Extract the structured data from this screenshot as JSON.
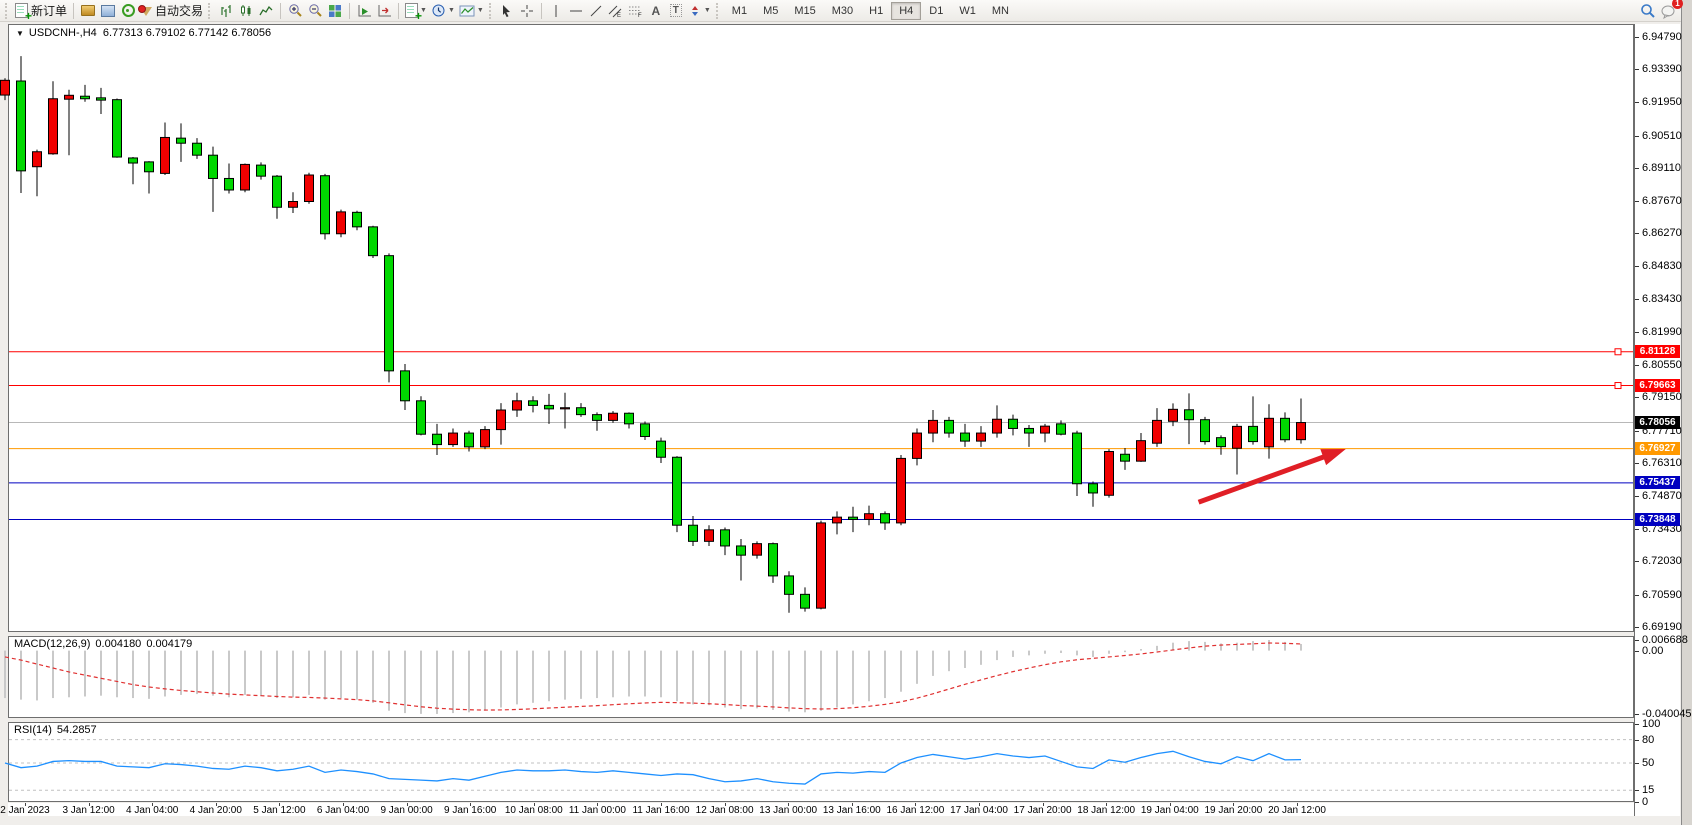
{
  "toolbar": {
    "new_order_label": "新订单",
    "autotrade_label": "自动交易",
    "timeframes": [
      "M1",
      "M5",
      "M15",
      "M30",
      "H1",
      "H4",
      "D1",
      "W1",
      "MN"
    ],
    "active_timeframe": "H4",
    "notification_badge": "1",
    "icon_names": [
      "new-order",
      "profiles",
      "market-watch",
      "signals",
      "autotrade",
      "bar-chart",
      "candlestick-chart",
      "line-chart",
      "zoom-in",
      "zoom-out",
      "tile-windows",
      "auto-scroll",
      "chart-shift",
      "new-chart",
      "periods-clock",
      "indicators",
      "cursor",
      "crosshair",
      "vertical-line",
      "horizontal-line",
      "trendline",
      "equidistant-channel",
      "fibonacci",
      "text",
      "text-label",
      "arrows",
      "search",
      "notifications"
    ]
  },
  "chart": {
    "symbol_title": "USDCNH-,H4",
    "ohlc_text": "6.77313 6.79102 6.77142 6.78056",
    "colors": {
      "bull": "#f00000",
      "bear": "#00d800",
      "wick": "#000000",
      "current_line": "#b8b8b8",
      "resistance": "#ff0000",
      "support": "#0000c0",
      "pivot": "#ff9900",
      "arrow": "#e01f26",
      "macd_hist": "#c9c9c9",
      "macd_signal": "#e03030",
      "rsi_line": "#1e90ff"
    },
    "price_axis_ticks": [
      "6.94790",
      "6.93390",
      "6.91950",
      "6.90510",
      "6.89110",
      "6.87670",
      "6.86270",
      "6.84830",
      "6.83430",
      "6.81990",
      "6.80550",
      "6.79150",
      "6.77710",
      "6.76310",
      "6.74870",
      "6.73430",
      "6.72030",
      "6.70590",
      "6.69190"
    ],
    "line_labels": [
      {
        "text": "6.81128",
        "price": 6.81128,
        "bg": "#ff0000",
        "line": "#ff0000",
        "marker": true
      },
      {
        "text": "6.79663",
        "price": 6.79663,
        "bg": "#ff0000",
        "line": "#ff0000",
        "marker": true
      },
      {
        "text": "6.78056",
        "price": 6.78056,
        "bg": "#000000",
        "line": "#b8b8b8",
        "marker": false
      },
      {
        "text": "6.76927",
        "price": 6.76927,
        "bg": "#ff9900",
        "line": "#ff9900",
        "marker": false
      },
      {
        "text": "6.75437",
        "price": 6.75437,
        "bg": "#0000c0",
        "line": "#0000c0",
        "marker": false
      },
      {
        "text": "6.73848",
        "price": 6.73848,
        "bg": "#0000c0",
        "line": "#0000c0",
        "marker": false
      }
    ]
  },
  "chart_data": {
    "type": "candlestick",
    "symbol": "USDCNH-",
    "timeframe": "H4",
    "last_bar": {
      "open": 6.77313,
      "high": 6.79102,
      "low": 6.77142,
      "close": 6.78056
    },
    "visible_price_range": [
      6.6919,
      6.9479
    ],
    "candles": [
      [
        6.9227,
        6.93,
        6.9205,
        6.9291
      ],
      [
        6.9288,
        6.9396,
        6.8802,
        6.8898
      ],
      [
        6.8916,
        6.899,
        6.8788,
        6.8981
      ],
      [
        6.8972,
        6.9287,
        6.8968,
        6.9211
      ],
      [
        6.9209,
        6.925,
        6.8966,
        6.9226
      ],
      [
        6.9222,
        6.9271,
        6.9198,
        6.9211
      ],
      [
        6.9215,
        6.9258,
        6.9145,
        6.9205
      ],
      [
        6.9207,
        6.9212,
        6.8955,
        6.8958
      ],
      [
        6.8954,
        6.8958,
        6.884,
        6.8932
      ],
      [
        6.8937,
        6.894,
        6.88,
        6.8894
      ],
      [
        6.8887,
        6.9108,
        6.888,
        6.9043
      ],
      [
        6.904,
        6.9104,
        6.8937,
        6.9018
      ],
      [
        6.9018,
        6.904,
        6.895,
        6.8966
      ],
      [
        6.8966,
        6.9003,
        6.872,
        6.8865
      ],
      [
        6.8865,
        6.893,
        6.88,
        6.8815
      ],
      [
        6.8815,
        6.893,
        6.8805,
        6.8926
      ],
      [
        6.8923,
        6.8935,
        6.886,
        6.8875
      ],
      [
        6.8875,
        6.888,
        6.869,
        6.874
      ],
      [
        6.874,
        6.8805,
        6.8715,
        6.8765
      ],
      [
        6.8765,
        6.889,
        6.8755,
        6.888
      ],
      [
        6.8877,
        6.8885,
        6.86,
        6.8625
      ],
      [
        6.8625,
        6.873,
        6.861,
        6.872
      ],
      [
        6.8718,
        6.8725,
        6.864,
        6.8655
      ],
      [
        6.8655,
        6.866,
        6.852,
        6.853
      ],
      [
        6.853,
        6.854,
        6.798,
        6.803
      ],
      [
        6.803,
        6.806,
        6.786,
        6.79
      ],
      [
        6.79,
        6.792,
        6.775,
        6.7755
      ],
      [
        6.7755,
        6.78,
        6.7665,
        6.771
      ],
      [
        6.771,
        6.778,
        6.77,
        6.776
      ],
      [
        6.776,
        6.777,
        6.768,
        6.77
      ],
      [
        6.77,
        6.779,
        6.769,
        6.7775
      ],
      [
        6.7775,
        6.789,
        6.771,
        6.786
      ],
      [
        6.786,
        6.7935,
        6.783,
        6.79
      ],
      [
        6.79,
        6.792,
        6.785,
        6.788
      ],
      [
        6.788,
        6.793,
        6.78,
        6.7865
      ],
      [
        6.7865,
        6.7935,
        6.778,
        6.787
      ],
      [
        6.787,
        6.789,
        6.783,
        6.784
      ],
      [
        6.784,
        6.785,
        6.777,
        6.7815
      ],
      [
        6.7815,
        6.7855,
        6.7805,
        6.7846
      ],
      [
        6.7846,
        6.785,
        6.778,
        6.78
      ],
      [
        6.78,
        6.781,
        6.773,
        6.7745
      ],
      [
        6.7725,
        6.774,
        6.763,
        6.7655
      ],
      [
        6.7655,
        6.766,
        6.733,
        6.736
      ],
      [
        6.736,
        6.74,
        6.727,
        6.729
      ],
      [
        6.729,
        6.736,
        6.727,
        6.734
      ],
      [
        6.734,
        6.735,
        6.723,
        6.727
      ],
      [
        6.727,
        6.73,
        6.712,
        6.723
      ],
      [
        6.723,
        6.729,
        6.7215,
        6.728
      ],
      [
        6.728,
        6.7285,
        6.711,
        6.714
      ],
      [
        6.714,
        6.716,
        6.698,
        6.706
      ],
      [
        6.706,
        6.709,
        6.6985,
        6.7
      ],
      [
        6.7,
        6.738,
        6.6995,
        6.737
      ],
      [
        6.737,
        6.742,
        6.732,
        6.7395
      ],
      [
        6.7395,
        6.744,
        6.733,
        6.7385
      ],
      [
        6.7385,
        6.7445,
        6.736,
        6.741
      ],
      [
        6.741,
        6.742,
        6.734,
        6.737
      ],
      [
        6.737,
        6.7665,
        6.736,
        6.765
      ],
      [
        6.765,
        6.778,
        6.762,
        6.776
      ],
      [
        6.776,
        6.786,
        6.772,
        6.7815
      ],
      [
        6.7815,
        6.783,
        6.774,
        6.776
      ],
      [
        6.776,
        6.78,
        6.77,
        6.7725
      ],
      [
        6.7725,
        6.779,
        6.77,
        6.776
      ],
      [
        6.776,
        6.788,
        6.774,
        6.782
      ],
      [
        6.782,
        6.784,
        6.775,
        6.778
      ],
      [
        6.778,
        6.7795,
        6.77,
        6.776
      ],
      [
        6.776,
        6.78,
        6.772,
        6.779
      ],
      [
        6.78,
        6.7815,
        6.775,
        6.7755
      ],
      [
        6.776,
        6.777,
        6.7487,
        6.754
      ],
      [
        6.754,
        6.755,
        6.744,
        6.75
      ],
      [
        6.749,
        6.769,
        6.748,
        6.768
      ],
      [
        6.7668,
        6.7695,
        6.76,
        6.7638
      ],
      [
        6.7638,
        6.776,
        6.7635,
        6.7727
      ],
      [
        6.7716,
        6.7868,
        6.77,
        6.7815
      ],
      [
        6.7811,
        6.7889,
        6.779,
        6.7863
      ],
      [
        6.7861,
        6.7932,
        6.7712,
        6.7818
      ],
      [
        6.7818,
        6.783,
        6.771,
        6.7723
      ],
      [
        6.774,
        6.775,
        6.7666,
        6.7701
      ],
      [
        6.7694,
        6.78,
        6.758,
        6.7789
      ],
      [
        6.7789,
        6.7919,
        6.771,
        6.7723
      ],
      [
        6.77,
        6.7885,
        6.7649,
        6.7824
      ],
      [
        6.7824,
        6.785,
        6.772,
        6.7731
      ],
      [
        6.77313,
        6.79102,
        6.77142,
        6.78056
      ]
    ],
    "horizontal_lines": [
      {
        "price": 6.81128,
        "color": "#ff0000"
      },
      {
        "price": 6.79663,
        "color": "#ff0000"
      },
      {
        "price": 6.78056,
        "color": "#b8b8b8"
      },
      {
        "price": 6.76927,
        "color": "#ff9900"
      },
      {
        "price": 6.75437,
        "color": "#0000c0"
      },
      {
        "price": 6.73848,
        "color": "#0000c0"
      }
    ],
    "annotation_arrow": {
      "tail": {
        "bar": 74.6,
        "price": 6.746
      },
      "tip": {
        "bar": 83.8,
        "price": 6.7691
      },
      "color": "#e01f26"
    },
    "time_labels": [
      "2 Jan 2023",
      "3 Jan 12:00",
      "4 Jan 04:00",
      "4 Jan 20:00",
      "5 Jan 12:00",
      "6 Jan 04:00",
      "9 Jan 00:00",
      "9 Jan 16:00",
      "10 Jan 08:00",
      "11 Jan 00:00",
      "11 Jan 16:00",
      "12 Jan 08:00",
      "13 Jan 00:00",
      "13 Jan 16:00",
      "16 Jan 12:00",
      "17 Jan 04:00",
      "17 Jan 20:00",
      "18 Jan 12:00",
      "19 Jan 04:00",
      "19 Jan 20:00",
      "20 Jan 12:00"
    ],
    "macd": {
      "label": "MACD(12,26,9)",
      "value_text": "0.004180",
      "signal_text": "0.004179",
      "scale_labels": [
        {
          "text": "0.006688",
          "v": 0.006688
        },
        {
          "text": "0.00",
          "v": 0
        },
        {
          "text": "-0.040045",
          "v": -0.040045
        }
      ],
      "histogram": [
        -0.03,
        -0.031,
        -0.0315,
        -0.03,
        -0.0295,
        -0.029,
        -0.0285,
        -0.0295,
        -0.03,
        -0.0305,
        -0.029,
        -0.028,
        -0.0275,
        -0.0285,
        -0.0295,
        -0.028,
        -0.0285,
        -0.03,
        -0.0295,
        -0.028,
        -0.031,
        -0.03,
        -0.031,
        -0.033,
        -0.038,
        -0.0395,
        -0.04,
        -0.040045,
        -0.0395,
        -0.039,
        -0.038,
        -0.036,
        -0.034,
        -0.033,
        -0.032,
        -0.031,
        -0.0305,
        -0.03,
        -0.0295,
        -0.029,
        -0.029,
        -0.0295,
        -0.032,
        -0.034,
        -0.0345,
        -0.036,
        -0.037,
        -0.0365,
        -0.0375,
        -0.0385,
        -0.039,
        -0.038,
        -0.036,
        -0.034,
        -0.032,
        -0.03,
        -0.026,
        -0.021,
        -0.016,
        -0.013,
        -0.011,
        -0.009,
        -0.006,
        -0.004,
        -0.003,
        -0.002,
        -0.0015,
        -0.003,
        -0.004,
        -0.002,
        -0.001,
        0.001,
        0.003,
        0.005,
        0.006,
        0.0055,
        0.0045,
        0.005,
        0.006,
        0.006688,
        0.0055,
        0.00418
      ],
      "signal": [
        -0.004,
        -0.006,
        -0.0085,
        -0.011,
        -0.0135,
        -0.0155,
        -0.0175,
        -0.0195,
        -0.0215,
        -0.023,
        -0.0242,
        -0.0252,
        -0.026,
        -0.0268,
        -0.0275,
        -0.028,
        -0.0285,
        -0.029,
        -0.0294,
        -0.0296,
        -0.03,
        -0.0305,
        -0.031,
        -0.0318,
        -0.033,
        -0.0343,
        -0.0355,
        -0.0364,
        -0.037,
        -0.0374,
        -0.0376,
        -0.0375,
        -0.0372,
        -0.0368,
        -0.0363,
        -0.0358,
        -0.0353,
        -0.0348,
        -0.0342,
        -0.0336,
        -0.0331,
        -0.0327,
        -0.0329,
        -0.0332,
        -0.0336,
        -0.0341,
        -0.0347,
        -0.0351,
        -0.0356,
        -0.0362,
        -0.0367,
        -0.0369,
        -0.0367,
        -0.0361,
        -0.0352,
        -0.034,
        -0.0324,
        -0.0301,
        -0.0273,
        -0.0243,
        -0.0213,
        -0.0185,
        -0.0158,
        -0.0133,
        -0.011,
        -0.0089,
        -0.0071,
        -0.0058,
        -0.0049,
        -0.004,
        -0.0031,
        -0.0021,
        -0.0009,
        0.0004,
        0.0017,
        0.0028,
        0.0035,
        0.0039,
        0.0043,
        0.0048,
        0.0046,
        0.004179
      ]
    },
    "rsi": {
      "label": "RSI(14)",
      "value_text": "54.2857",
      "levels": [
        80,
        50,
        15
      ],
      "scale_labels": [
        {
          "text": "100",
          "v": 100
        },
        {
          "text": "80",
          "v": 80
        },
        {
          "text": "50",
          "v": 50
        },
        {
          "text": "15",
          "v": 15
        },
        {
          "text": "0",
          "v": 0
        }
      ],
      "values": [
        50,
        44,
        46,
        52,
        53,
        52,
        52,
        46,
        45,
        44,
        49,
        48,
        46,
        43,
        42,
        46,
        44,
        40,
        42,
        46,
        38,
        41,
        39,
        36,
        30,
        29,
        28,
        27,
        30,
        28,
        33,
        38,
        41,
        40,
        40,
        41,
        39,
        38,
        40,
        38,
        36,
        34,
        36,
        35,
        30,
        26,
        27,
        30,
        26,
        24,
        23,
        36,
        38,
        37,
        39,
        38,
        50,
        57,
        61,
        58,
        55,
        58,
        62,
        59,
        57,
        59,
        52,
        45,
        43,
        54,
        51,
        57,
        62,
        65,
        58,
        52,
        49,
        58,
        53,
        62,
        54,
        54.2857
      ]
    }
  }
}
